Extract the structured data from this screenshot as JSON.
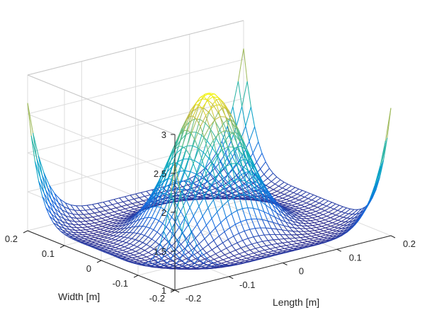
{
  "chart_data": {
    "type": "surface-mesh",
    "title": "",
    "xlabel": "Length [m]",
    "ylabel": "Width [m]",
    "zlabel": "",
    "xlim": [
      -0.2,
      0.2
    ],
    "ylim": [
      -0.2,
      0.2
    ],
    "zlim": [
      1,
      3
    ],
    "xticks": [
      -0.2,
      -0.1,
      0,
      0.1,
      0.2
    ],
    "yticks": [
      -0.2,
      -0.1,
      0,
      0.1,
      0.2
    ],
    "zticks": [
      1,
      1.5,
      2,
      2.5,
      3
    ],
    "xtick_labels": [
      "-0.2",
      "-0.1",
      "0",
      "0.1",
      "0.2"
    ],
    "ytick_labels": [
      "-0.2",
      "-0.1",
      "0",
      "0.1",
      "0.2"
    ],
    "ztick_labels": [
      "1",
      "1.5",
      "2",
      "2.5",
      "3"
    ],
    "grid": true,
    "colormap": "parula",
    "mesh_style": "wireframe",
    "colors": {
      "low": "#352a87",
      "mid_low": "#0f7fd8",
      "mid": "#1fb8b0",
      "mid_high": "#a5be49",
      "high": "#f9fb0e",
      "grid": "#dcdcdc",
      "axis": "#262626"
    },
    "surface": {
      "grid_points_per_side": 41,
      "domain": [
        -0.2,
        0.2
      ],
      "description_values": {
        "center_peak_z": 2.8,
        "corner_z": 2.4,
        "edge_mid_z": 1.15,
        "floor_z": 1.0
      }
    }
  }
}
